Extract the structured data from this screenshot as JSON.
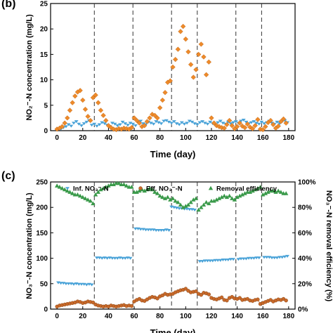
{
  "chart_data": [
    {
      "type": "scatter",
      "panel_label": "(b)",
      "xlabel": "Time (day)",
      "ylabel": "NO₂⁻-N concentration (mg/L)",
      "xlim": [
        -5,
        185
      ],
      "ylim": [
        0,
        25
      ],
      "xticks": [
        0,
        20,
        40,
        60,
        80,
        100,
        120,
        140,
        160,
        180
      ],
      "yticks": [
        0,
        5,
        10,
        15,
        20,
        25
      ],
      "phase_boundaries": [
        29,
        59,
        89,
        109,
        139,
        159
      ],
      "grid": false,
      "series": [
        {
          "role": "influent",
          "color": "#4aa3d8",
          "marker": "tri_down",
          "x": [
            1,
            3,
            5,
            7,
            9,
            11,
            13,
            15,
            17,
            19,
            21,
            23,
            25,
            27,
            29,
            31,
            33,
            35,
            37,
            39,
            41,
            43,
            45,
            47,
            49,
            51,
            53,
            55,
            57,
            59,
            61,
            63,
            65,
            67,
            69,
            71,
            73,
            75,
            77,
            79,
            81,
            83,
            85,
            87,
            89,
            91,
            93,
            95,
            97,
            99,
            101,
            103,
            105,
            107,
            109,
            111,
            113,
            115,
            117,
            119,
            121,
            123,
            125,
            127,
            129,
            131,
            133,
            135,
            137,
            139,
            141,
            143,
            145,
            147,
            149,
            151,
            153,
            155,
            157,
            159,
            161,
            163,
            165,
            167,
            169,
            171,
            173,
            175,
            177,
            179
          ],
          "y": [
            0.4,
            0.3,
            0.6,
            0.8,
            1.2,
            0.9,
            1.5,
            1.8,
            1.3,
            1.0,
            1.4,
            1.7,
            2.0,
            1.1,
            1.3,
            0.9,
            1.2,
            1.6,
            1.4,
            1.1,
            0.8,
            1.5,
            1.3,
            1.0,
            1.2,
            1.7,
            1.4,
            1.1,
            1.5,
            1.3,
            1.0,
            1.6,
            1.9,
            1.4,
            1.2,
            1.7,
            1.5,
            1.3,
            1.8,
            1.6,
            1.4,
            1.9,
            2.0,
            1.7,
            1.5,
            1.8,
            1.4,
            1.2,
            1.6,
            1.3,
            1.5,
            1.9,
            1.7,
            1.4,
            1.2,
            1.6,
            1.8,
            1.5,
            1.3,
            1.7,
            1.4,
            1.2,
            1.6,
            1.9,
            1.5,
            1.3,
            1.7,
            1.4,
            1.6,
            1.8,
            1.5,
            1.9,
            2.1,
            1.7,
            1.4,
            1.6,
            1.8,
            1.5,
            1.3,
            1.7,
            1.4,
            1.6,
            1.9,
            1.5,
            1.3,
            1.7,
            1.4,
            1.8,
            2.0,
            1.6
          ]
        },
        {
          "role": "effluent",
          "color": "#ee8a2a",
          "marker": "diamond",
          "x": [
            0,
            2,
            4,
            6,
            8,
            10,
            12,
            14,
            16,
            18,
            20,
            22,
            24,
            26,
            28,
            30,
            32,
            34,
            36,
            38,
            40,
            42,
            44,
            46,
            48,
            50,
            52,
            54,
            56,
            58,
            60,
            62,
            64,
            66,
            68,
            70,
            72,
            74,
            76,
            78,
            80,
            82,
            84,
            86,
            88,
            90,
            92,
            94,
            96,
            98,
            100,
            102,
            104,
            106,
            108,
            110,
            112,
            114,
            116,
            118,
            120,
            122,
            124,
            126,
            128,
            130,
            132,
            134,
            136,
            138,
            140,
            142,
            144,
            146,
            148,
            150,
            152,
            154,
            156,
            158,
            160,
            162,
            164,
            166,
            168,
            170,
            172,
            174,
            176,
            178
          ],
          "y": [
            0.3,
            0.5,
            0.8,
            1.5,
            2.5,
            4.0,
            5.5,
            6.8,
            7.6,
            7.9,
            6.0,
            4.2,
            2.8,
            2.0,
            6.5,
            7.0,
            5.5,
            4.0,
            3.0,
            2.0,
            1.0,
            0.6,
            0.3,
            0.2,
            0.4,
            0.3,
            0.5,
            0.4,
            0.3,
            0.6,
            2.5,
            2.0,
            1.5,
            0.8,
            1.0,
            1.8,
            2.5,
            3.2,
            3.0,
            2.5,
            4.5,
            6.0,
            7.5,
            9.5,
            9.8,
            12.5,
            14.0,
            16.0,
            19.5,
            20.5,
            18.0,
            15.5,
            13.0,
            10.5,
            12.0,
            15.0,
            17.0,
            14.5,
            11.0,
            13.5,
            2.5,
            1.5,
            1.0,
            0.8,
            0.6,
            0.5,
            1.2,
            2.0,
            1.0,
            0.4,
            0.8,
            1.5,
            0.9,
            0.6,
            1.3,
            0.7,
            0.4,
            1.0,
            2.2,
            0.3,
            0.2,
            0.8,
            1.6,
            2.0,
            1.2,
            0.5,
            0.9,
            1.8,
            2.3,
            1.5
          ]
        }
      ]
    },
    {
      "type": "scatter",
      "panel_label": "(c)",
      "xlabel": "Time (day)",
      "ylabel": "NO₃⁻-N concentration (mg/L)",
      "ylabel_right": "NO₃⁻-N removal efficiency (%)",
      "xlim": [
        -5,
        185
      ],
      "ylim": [
        0,
        250
      ],
      "ylim_right": [
        0,
        100
      ],
      "xticks": [
        0,
        20,
        40,
        60,
        80,
        100,
        120,
        140,
        160,
        180
      ],
      "yticks": [
        0,
        50,
        100,
        150,
        200,
        250
      ],
      "yticks_right": [
        "0%",
        "20%",
        "40%",
        "60%",
        "80%",
        "100%"
      ],
      "phase_boundaries": [
        29,
        59,
        89,
        109,
        139,
        159
      ],
      "legend_position": "top",
      "grid": false,
      "series": [
        {
          "name": "Inf. NO₃⁻-N",
          "color": "#4aa3d8",
          "marker": "tri_down",
          "axis": "left",
          "x": [
            1,
            3,
            5,
            7,
            9,
            11,
            13,
            15,
            17,
            19,
            21,
            23,
            25,
            27,
            31,
            33,
            35,
            37,
            39,
            41,
            43,
            45,
            47,
            49,
            51,
            53,
            55,
            57,
            61,
            63,
            65,
            67,
            69,
            71,
            73,
            75,
            77,
            79,
            81,
            83,
            85,
            87,
            89,
            91,
            93,
            95,
            97,
            99,
            101,
            103,
            105,
            107,
            111,
            113,
            115,
            117,
            119,
            121,
            123,
            125,
            127,
            129,
            131,
            133,
            135,
            137,
            141,
            143,
            145,
            147,
            149,
            151,
            153,
            155,
            157,
            161,
            163,
            165,
            167,
            169,
            171,
            173,
            175,
            177,
            179
          ],
          "y": [
            52,
            51,
            51,
            50,
            50,
            50,
            49,
            50,
            49,
            49,
            49,
            48,
            49,
            48,
            101,
            101,
            100,
            101,
            100,
            101,
            100,
            100,
            100,
            101,
            100,
            100,
            101,
            100,
            158,
            158,
            157,
            157,
            156,
            156,
            156,
            156,
            155,
            155,
            155,
            155,
            156,
            155,
            201,
            200,
            199,
            198,
            198,
            197,
            197,
            196,
            196,
            195,
            94,
            94,
            95,
            95,
            95,
            95,
            96,
            96,
            96,
            97,
            97,
            97,
            98,
            98,
            98,
            99,
            99,
            99,
            100,
            100,
            100,
            101,
            101,
            102,
            102,
            102,
            101,
            101,
            101,
            102,
            102,
            103,
            104
          ]
        },
        {
          "name": "Eff. NO₃⁻-N",
          "color": "#c8692a",
          "marker": "circle",
          "axis": "left",
          "x": [
            0,
            2,
            4,
            6,
            8,
            10,
            12,
            14,
            16,
            18,
            20,
            22,
            24,
            26,
            28,
            30,
            32,
            34,
            36,
            38,
            40,
            42,
            44,
            46,
            48,
            50,
            52,
            54,
            56,
            58,
            60,
            62,
            64,
            66,
            68,
            70,
            72,
            74,
            76,
            78,
            80,
            82,
            84,
            86,
            88,
            90,
            92,
            94,
            96,
            98,
            100,
            102,
            104,
            106,
            108,
            110,
            112,
            114,
            116,
            118,
            120,
            122,
            124,
            126,
            128,
            130,
            132,
            134,
            136,
            138,
            140,
            142,
            144,
            146,
            148,
            150,
            152,
            154,
            156,
            158,
            160,
            162,
            164,
            166,
            168,
            170,
            172,
            174,
            176,
            178
          ],
          "y": [
            5,
            7,
            8,
            9,
            10,
            11,
            12,
            13,
            15,
            14,
            12,
            13,
            15,
            14,
            13,
            9,
            7,
            6,
            5,
            6,
            5,
            7,
            6,
            5,
            6,
            7,
            8,
            6,
            7,
            6,
            15,
            18,
            20,
            17,
            16,
            19,
            22,
            24,
            23,
            21,
            25,
            27,
            30,
            28,
            29,
            30,
            33,
            35,
            37,
            38,
            40,
            36,
            33,
            34,
            35,
            30,
            28,
            32,
            31,
            29,
            22,
            20,
            19,
            21,
            23,
            18,
            17,
            22,
            24,
            21,
            20,
            22,
            18,
            19,
            20,
            17,
            16,
            18,
            19,
            10,
            12,
            14,
            16,
            18,
            15,
            17,
            19,
            18,
            20,
            17
          ]
        },
        {
          "name": "Removal efficiency",
          "color": "#3a9a4a",
          "marker": "triangle",
          "axis": "right",
          "unit": "%",
          "x": [
            0,
            2,
            4,
            6,
            8,
            10,
            12,
            14,
            16,
            18,
            20,
            22,
            24,
            26,
            28,
            30,
            32,
            34,
            36,
            38,
            40,
            42,
            44,
            46,
            48,
            50,
            52,
            54,
            56,
            58,
            60,
            62,
            64,
            66,
            68,
            70,
            72,
            74,
            76,
            78,
            80,
            82,
            84,
            86,
            88,
            90,
            92,
            94,
            96,
            98,
            100,
            102,
            104,
            106,
            108,
            110,
            112,
            114,
            116,
            118,
            120,
            122,
            124,
            126,
            128,
            130,
            132,
            134,
            136,
            138,
            140,
            142,
            144,
            146,
            148,
            150,
            152,
            154,
            156,
            158,
            160,
            162,
            164,
            166,
            168,
            170,
            172,
            174,
            176,
            178
          ],
          "y": [
            97,
            96,
            95,
            94,
            93,
            92,
            91,
            90,
            90,
            89,
            88,
            87,
            86,
            85,
            83,
            90,
            92,
            94,
            95,
            96,
            97,
            98,
            98,
            99,
            99,
            98,
            98,
            97,
            96,
            96,
            92,
            92,
            93,
            94,
            93,
            94,
            95,
            94,
            92,
            91,
            89,
            88,
            87,
            88,
            86,
            87,
            85,
            84,
            82,
            80,
            81,
            82,
            84,
            86,
            87,
            78,
            80,
            82,
            84,
            83,
            85,
            85,
            86,
            87,
            88,
            89,
            88,
            89,
            87,
            86,
            88,
            89,
            90,
            91,
            92,
            92,
            93,
            94,
            95,
            96,
            90,
            91,
            92,
            93,
            93,
            92,
            93,
            92,
            91,
            91
          ]
        }
      ]
    }
  ]
}
